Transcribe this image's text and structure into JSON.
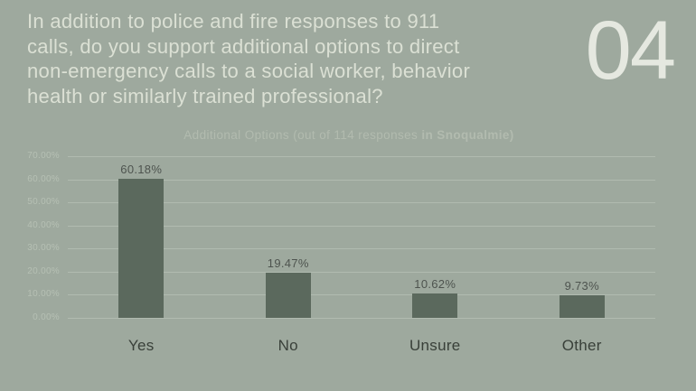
{
  "slide": {
    "question": "In addition to police and fire responses to 911\ncalls, do you support additional options to direct\nnon-emergency calls to a social worker, behavior\nhealth or similarly trained professional?",
    "page_number": "04"
  },
  "chart_data": {
    "type": "bar",
    "title": "Additional Options (out of 114 responses in Snoqualmie)",
    "title_regular": "Additional Options (out of 114 responses ",
    "title_bold": "in Snoqualmie)",
    "categories": [
      "Yes",
      "No",
      "Unsure",
      "Other"
    ],
    "values": [
      60.18,
      19.47,
      10.62,
      9.73
    ],
    "value_labels": [
      "60.18%",
      "19.47%",
      "10.62%",
      "9.73%"
    ],
    "ylim": [
      0,
      70
    ],
    "ytick_step": 10,
    "ytick_labels": [
      "0.00%",
      "10.00%",
      "20.00%",
      "30.00%",
      "40.00%",
      "50.00%",
      "60.00%",
      "70.00%"
    ],
    "grid": true,
    "legend": "none",
    "xlabel": "",
    "ylabel": ""
  },
  "colors": {
    "background": "#9ea99e",
    "bar": "#5b695d",
    "heading_text": "#dbe0d4",
    "page_number_text": "#e5e8e0",
    "chart_title_text": "#b2bbaf",
    "ytick_text": "#b6c0b4",
    "gridline": "#b1bbb0",
    "value_label_text": "#4e544f",
    "category_label_text": "#394039"
  }
}
